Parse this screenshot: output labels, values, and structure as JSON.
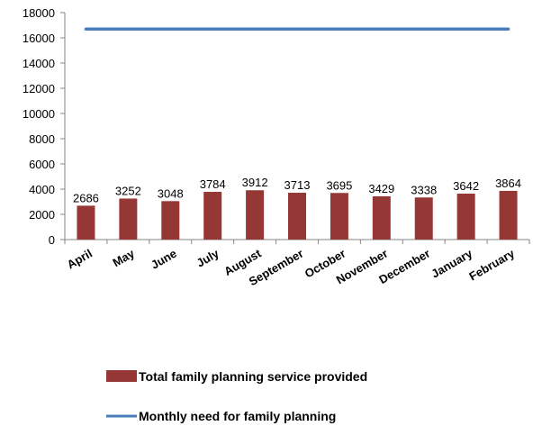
{
  "chart_data": {
    "type": "bar",
    "categories": [
      "April",
      "May",
      "June",
      "July",
      "August",
      "September",
      "October",
      "November",
      "December",
      "January",
      "February"
    ],
    "series": [
      {
        "name": "Total family planning service provided",
        "type": "bar",
        "values": [
          2686,
          3252,
          3048,
          3784,
          3912,
          3713,
          3695,
          3429,
          3338,
          3642,
          3864
        ],
        "color": "#953735"
      },
      {
        "name": "Monthly need for family planning",
        "type": "line",
        "values": [
          16700,
          16700,
          16700,
          16700,
          16700,
          16700,
          16700,
          16700,
          16700,
          16700,
          16700
        ],
        "color": "#4a7ebb"
      }
    ],
    "ylim": [
      0,
      18000
    ],
    "yticks": [
      0,
      2000,
      4000,
      6000,
      8000,
      10000,
      12000,
      14000,
      16000,
      18000
    ],
    "data_labels": true,
    "grid": false,
    "legend": "bottom"
  }
}
